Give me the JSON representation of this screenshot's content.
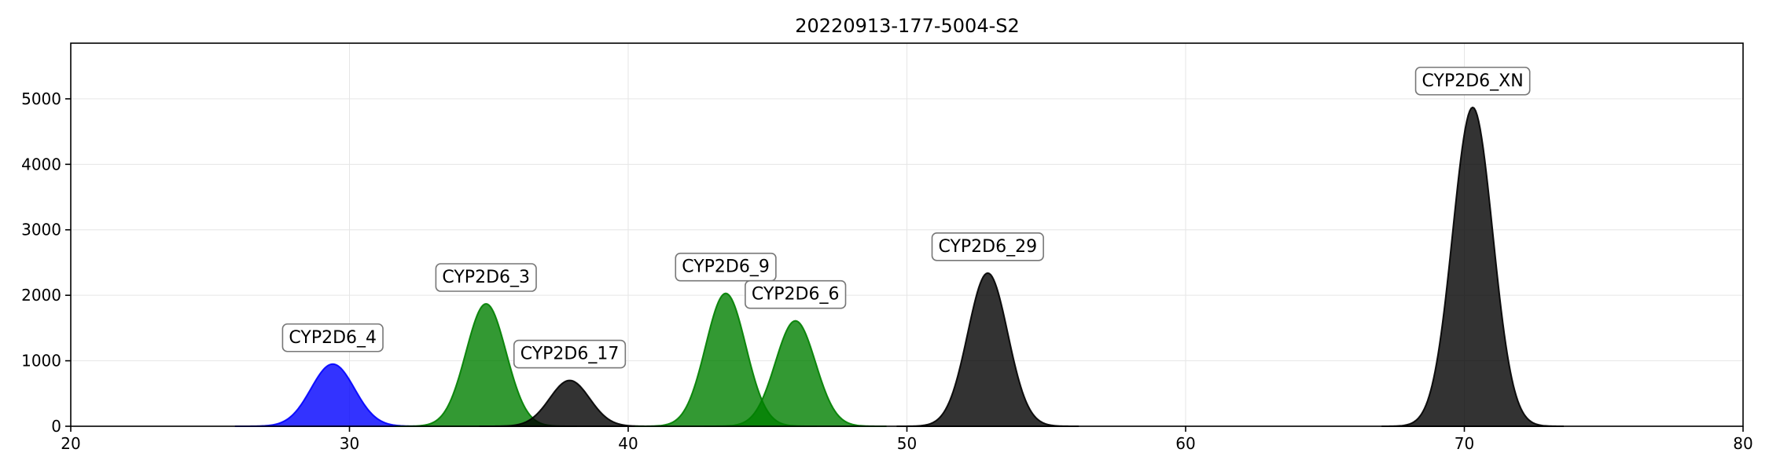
{
  "chart_data": {
    "type": "area",
    "title": "20220913-177-5004-S2",
    "xlabel": "",
    "ylabel": "",
    "xlim": [
      20,
      80
    ],
    "ylim": [
      0,
      5850
    ],
    "x_ticks": [
      20,
      30,
      40,
      50,
      60,
      70,
      80
    ],
    "y_ticks": [
      0,
      1000,
      2000,
      3000,
      4000,
      5000
    ],
    "grid": true,
    "peaks": [
      {
        "label": "CYP2D6_4",
        "center": 29.4,
        "height": 950,
        "sigma": 0.78,
        "color": "#0000ff"
      },
      {
        "label": "CYP2D6_3",
        "center": 34.9,
        "height": 1870,
        "sigma": 0.72,
        "color": "#008000"
      },
      {
        "label": "CYP2D6_17",
        "center": 37.9,
        "height": 700,
        "sigma": 0.72,
        "color": "#000000"
      },
      {
        "label": "CYP2D6_9",
        "center": 43.5,
        "height": 2030,
        "sigma": 0.72,
        "color": "#008000"
      },
      {
        "label": "CYP2D6_6",
        "center": 46.0,
        "height": 1610,
        "sigma": 0.72,
        "color": "#008000"
      },
      {
        "label": "CYP2D6_29",
        "center": 52.9,
        "height": 2340,
        "sigma": 0.72,
        "color": "#000000"
      },
      {
        "label": "CYP2D6_XN",
        "center": 70.3,
        "height": 4870,
        "sigma": 0.72,
        "color": "#000000"
      }
    ]
  }
}
